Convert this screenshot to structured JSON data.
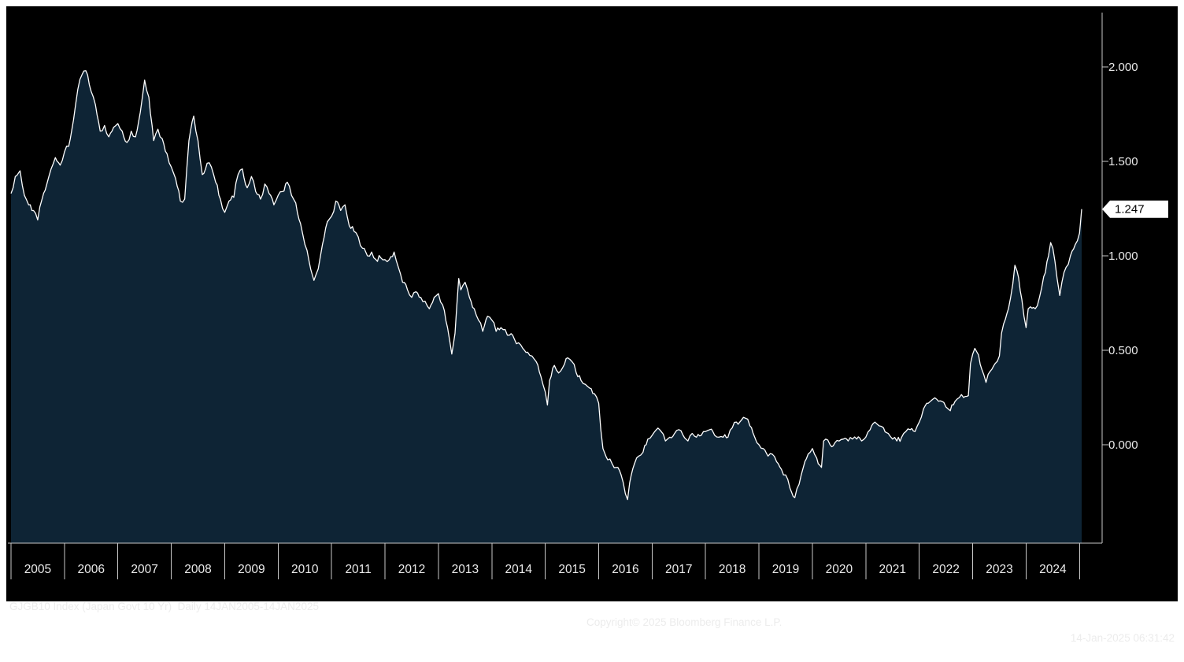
{
  "chart_data": {
    "type": "area",
    "title": "GJGB10 Index (Japan Govt 10 Yr)",
    "xlabel": "",
    "ylabel": "",
    "xlim": [
      2005.0,
      2025.04
    ],
    "ylim": [
      -0.52,
      2.26
    ],
    "grid": false,
    "legend": false,
    "y_ticks": [
      {
        "value": 2.0,
        "label": "2.000"
      },
      {
        "value": 1.5,
        "label": "1.500"
      },
      {
        "value": 1.0,
        "label": "1.000"
      },
      {
        "value": 0.5,
        "label": "0.500"
      },
      {
        "value": 0.0,
        "label": "0.000"
      }
    ],
    "x_ticks": [
      "2005",
      "2006",
      "2007",
      "2008",
      "2009",
      "2010",
      "2011",
      "2012",
      "2013",
      "2014",
      "2015",
      "2016",
      "2017",
      "2018",
      "2019",
      "2020",
      "2021",
      "2022",
      "2023",
      "2024"
    ],
    "last_price": 1.247,
    "last_price_label": "1.247",
    "colors": {
      "line": "#ffffff",
      "fill": "#0e2435",
      "background": "#000000",
      "axis": "#c8c8c8",
      "tick_text": "#eaeaea",
      "price_box_bg": "#ffffff",
      "price_box_text": "#000000"
    },
    "series": [
      {
        "name": "GJGB10 Index (Japan Govt 10 Yr)",
        "points": [
          [
            2005.0,
            1.33
          ],
          [
            2005.08,
            1.42
          ],
          [
            2005.17,
            1.45
          ],
          [
            2005.25,
            1.32
          ],
          [
            2005.33,
            1.27
          ],
          [
            2005.42,
            1.24
          ],
          [
            2005.5,
            1.19
          ],
          [
            2005.58,
            1.3
          ],
          [
            2005.67,
            1.38
          ],
          [
            2005.75,
            1.46
          ],
          [
            2005.83,
            1.52
          ],
          [
            2005.92,
            1.48
          ],
          [
            2006.0,
            1.55
          ],
          [
            2006.08,
            1.58
          ],
          [
            2006.17,
            1.72
          ],
          [
            2006.25,
            1.88
          ],
          [
            2006.33,
            1.96
          ],
          [
            2006.4,
            1.98
          ],
          [
            2006.5,
            1.87
          ],
          [
            2006.58,
            1.8
          ],
          [
            2006.67,
            1.66
          ],
          [
            2006.75,
            1.69
          ],
          [
            2006.83,
            1.63
          ],
          [
            2006.92,
            1.68
          ],
          [
            2007.0,
            1.7
          ],
          [
            2007.08,
            1.66
          ],
          [
            2007.17,
            1.6
          ],
          [
            2007.25,
            1.66
          ],
          [
            2007.33,
            1.63
          ],
          [
            2007.42,
            1.76
          ],
          [
            2007.5,
            1.93
          ],
          [
            2007.58,
            1.84
          ],
          [
            2007.67,
            1.61
          ],
          [
            2007.75,
            1.67
          ],
          [
            2007.83,
            1.62
          ],
          [
            2007.92,
            1.54
          ],
          [
            2008.0,
            1.47
          ],
          [
            2008.08,
            1.41
          ],
          [
            2008.17,
            1.29
          ],
          [
            2008.25,
            1.3
          ],
          [
            2008.33,
            1.61
          ],
          [
            2008.42,
            1.74
          ],
          [
            2008.5,
            1.61
          ],
          [
            2008.58,
            1.43
          ],
          [
            2008.67,
            1.49
          ],
          [
            2008.75,
            1.47
          ],
          [
            2008.83,
            1.39
          ],
          [
            2008.92,
            1.3
          ],
          [
            2009.0,
            1.23
          ],
          [
            2009.08,
            1.29
          ],
          [
            2009.17,
            1.31
          ],
          [
            2009.25,
            1.43
          ],
          [
            2009.33,
            1.46
          ],
          [
            2009.42,
            1.36
          ],
          [
            2009.5,
            1.42
          ],
          [
            2009.58,
            1.34
          ],
          [
            2009.67,
            1.3
          ],
          [
            2009.75,
            1.38
          ],
          [
            2009.83,
            1.33
          ],
          [
            2009.92,
            1.27
          ],
          [
            2010.0,
            1.32
          ],
          [
            2010.08,
            1.34
          ],
          [
            2010.17,
            1.39
          ],
          [
            2010.25,
            1.32
          ],
          [
            2010.33,
            1.28
          ],
          [
            2010.42,
            1.17
          ],
          [
            2010.5,
            1.06
          ],
          [
            2010.58,
            0.97
          ],
          [
            2010.67,
            0.87
          ],
          [
            2010.75,
            0.93
          ],
          [
            2010.83,
            1.06
          ],
          [
            2010.92,
            1.18
          ],
          [
            2011.0,
            1.21
          ],
          [
            2011.08,
            1.29
          ],
          [
            2011.17,
            1.24
          ],
          [
            2011.25,
            1.27
          ],
          [
            2011.33,
            1.16
          ],
          [
            2011.42,
            1.13
          ],
          [
            2011.5,
            1.1
          ],
          [
            2011.58,
            1.04
          ],
          [
            2011.67,
            1.0
          ],
          [
            2011.75,
            1.02
          ],
          [
            2011.83,
            0.98
          ],
          [
            2011.92,
            0.99
          ],
          [
            2012.0,
            0.98
          ],
          [
            2012.08,
            0.98
          ],
          [
            2012.17,
            1.02
          ],
          [
            2012.25,
            0.94
          ],
          [
            2012.33,
            0.86
          ],
          [
            2012.42,
            0.82
          ],
          [
            2012.5,
            0.78
          ],
          [
            2012.58,
            0.81
          ],
          [
            2012.67,
            0.78
          ],
          [
            2012.75,
            0.76
          ],
          [
            2012.83,
            0.72
          ],
          [
            2012.92,
            0.78
          ],
          [
            2013.0,
            0.8
          ],
          [
            2013.08,
            0.74
          ],
          [
            2013.17,
            0.62
          ],
          [
            2013.25,
            0.48
          ],
          [
            2013.31,
            0.59
          ],
          [
            2013.38,
            0.88
          ],
          [
            2013.42,
            0.82
          ],
          [
            2013.5,
            0.86
          ],
          [
            2013.58,
            0.78
          ],
          [
            2013.67,
            0.72
          ],
          [
            2013.75,
            0.66
          ],
          [
            2013.83,
            0.6
          ],
          [
            2013.92,
            0.68
          ],
          [
            2014.0,
            0.66
          ],
          [
            2014.08,
            0.6
          ],
          [
            2014.17,
            0.62
          ],
          [
            2014.25,
            0.61
          ],
          [
            2014.33,
            0.58
          ],
          [
            2014.42,
            0.56
          ],
          [
            2014.5,
            0.54
          ],
          [
            2014.58,
            0.51
          ],
          [
            2014.67,
            0.49
          ],
          [
            2014.75,
            0.47
          ],
          [
            2014.83,
            0.44
          ],
          [
            2014.92,
            0.36
          ],
          [
            2015.0,
            0.28
          ],
          [
            2015.04,
            0.21
          ],
          [
            2015.08,
            0.34
          ],
          [
            2015.17,
            0.42
          ],
          [
            2015.25,
            0.38
          ],
          [
            2015.33,
            0.41
          ],
          [
            2015.42,
            0.46
          ],
          [
            2015.5,
            0.44
          ],
          [
            2015.58,
            0.38
          ],
          [
            2015.67,
            0.34
          ],
          [
            2015.75,
            0.32
          ],
          [
            2015.83,
            0.3
          ],
          [
            2015.92,
            0.27
          ],
          [
            2016.0,
            0.22
          ],
          [
            2016.04,
            0.08
          ],
          [
            2016.08,
            -0.02
          ],
          [
            2016.17,
            -0.08
          ],
          [
            2016.25,
            -0.1
          ],
          [
            2016.33,
            -0.12
          ],
          [
            2016.42,
            -0.16
          ],
          [
            2016.5,
            -0.26
          ],
          [
            2016.54,
            -0.29
          ],
          [
            2016.58,
            -0.2
          ],
          [
            2016.67,
            -0.1
          ],
          [
            2016.75,
            -0.06
          ],
          [
            2016.83,
            -0.04
          ],
          [
            2016.92,
            0.03
          ],
          [
            2017.0,
            0.05
          ],
          [
            2017.08,
            0.08
          ],
          [
            2017.17,
            0.07
          ],
          [
            2017.25,
            0.02
          ],
          [
            2017.33,
            0.04
          ],
          [
            2017.42,
            0.06
          ],
          [
            2017.5,
            0.08
          ],
          [
            2017.58,
            0.05
          ],
          [
            2017.67,
            0.02
          ],
          [
            2017.75,
            0.06
          ],
          [
            2017.83,
            0.04
          ],
          [
            2017.92,
            0.05
          ],
          [
            2018.0,
            0.07
          ],
          [
            2018.08,
            0.08
          ],
          [
            2018.17,
            0.05
          ],
          [
            2018.25,
            0.04
          ],
          [
            2018.33,
            0.04
          ],
          [
            2018.42,
            0.04
          ],
          [
            2018.5,
            0.09
          ],
          [
            2018.58,
            0.12
          ],
          [
            2018.67,
            0.13
          ],
          [
            2018.75,
            0.14
          ],
          [
            2018.83,
            0.1
          ],
          [
            2018.92,
            0.04
          ],
          [
            2019.0,
            0.0
          ],
          [
            2019.08,
            -0.02
          ],
          [
            2019.17,
            -0.06
          ],
          [
            2019.25,
            -0.05
          ],
          [
            2019.33,
            -0.09
          ],
          [
            2019.42,
            -0.13
          ],
          [
            2019.5,
            -0.16
          ],
          [
            2019.58,
            -0.23
          ],
          [
            2019.67,
            -0.28
          ],
          [
            2019.75,
            -0.21
          ],
          [
            2019.83,
            -0.12
          ],
          [
            2019.92,
            -0.05
          ],
          [
            2020.0,
            -0.02
          ],
          [
            2020.08,
            -0.07
          ],
          [
            2020.17,
            -0.12
          ],
          [
            2020.21,
            0.02
          ],
          [
            2020.25,
            0.03
          ],
          [
            2020.33,
            0.0
          ],
          [
            2020.42,
            0.01
          ],
          [
            2020.5,
            0.02
          ],
          [
            2020.58,
            0.03
          ],
          [
            2020.67,
            0.02
          ],
          [
            2020.75,
            0.03
          ],
          [
            2020.83,
            0.03
          ],
          [
            2020.92,
            0.02
          ],
          [
            2021.0,
            0.04
          ],
          [
            2021.08,
            0.08
          ],
          [
            2021.17,
            0.12
          ],
          [
            2021.25,
            0.1
          ],
          [
            2021.33,
            0.09
          ],
          [
            2021.42,
            0.06
          ],
          [
            2021.5,
            0.03
          ],
          [
            2021.58,
            0.02
          ],
          [
            2021.67,
            0.04
          ],
          [
            2021.75,
            0.07
          ],
          [
            2021.83,
            0.08
          ],
          [
            2021.92,
            0.07
          ],
          [
            2022.0,
            0.12
          ],
          [
            2022.08,
            0.19
          ],
          [
            2022.17,
            0.22
          ],
          [
            2022.25,
            0.24
          ],
          [
            2022.33,
            0.24
          ],
          [
            2022.42,
            0.23
          ],
          [
            2022.5,
            0.2
          ],
          [
            2022.58,
            0.18
          ],
          [
            2022.67,
            0.23
          ],
          [
            2022.75,
            0.25
          ],
          [
            2022.83,
            0.25
          ],
          [
            2022.92,
            0.26
          ],
          [
            2022.96,
            0.43
          ],
          [
            2023.0,
            0.48
          ],
          [
            2023.04,
            0.51
          ],
          [
            2023.08,
            0.49
          ],
          [
            2023.17,
            0.4
          ],
          [
            2023.25,
            0.33
          ],
          [
            2023.33,
            0.39
          ],
          [
            2023.42,
            0.43
          ],
          [
            2023.5,
            0.47
          ],
          [
            2023.54,
            0.59
          ],
          [
            2023.58,
            0.64
          ],
          [
            2023.67,
            0.72
          ],
          [
            2023.75,
            0.85
          ],
          [
            2023.79,
            0.95
          ],
          [
            2023.83,
            0.92
          ],
          [
            2023.92,
            0.77
          ],
          [
            2024.0,
            0.62
          ],
          [
            2024.04,
            0.72
          ],
          [
            2024.08,
            0.73
          ],
          [
            2024.17,
            0.72
          ],
          [
            2024.25,
            0.78
          ],
          [
            2024.33,
            0.89
          ],
          [
            2024.42,
            1.0
          ],
          [
            2024.46,
            1.07
          ],
          [
            2024.5,
            1.04
          ],
          [
            2024.54,
            0.97
          ],
          [
            2024.58,
            0.88
          ],
          [
            2024.63,
            0.79
          ],
          [
            2024.67,
            0.86
          ],
          [
            2024.75,
            0.94
          ],
          [
            2024.83,
            1.0
          ],
          [
            2024.92,
            1.06
          ],
          [
            2024.96,
            1.08
          ],
          [
            2025.0,
            1.12
          ],
          [
            2025.02,
            1.18
          ],
          [
            2025.04,
            1.247
          ]
        ]
      }
    ]
  },
  "footer": {
    "left": "GJGB10 Index (Japan Govt 10 Yr)  Daily 14JAN2005-14JAN2025",
    "center": "Copyright© 2025 Bloomberg Finance L.P.",
    "right": "14-Jan-2025 06:31:42"
  }
}
